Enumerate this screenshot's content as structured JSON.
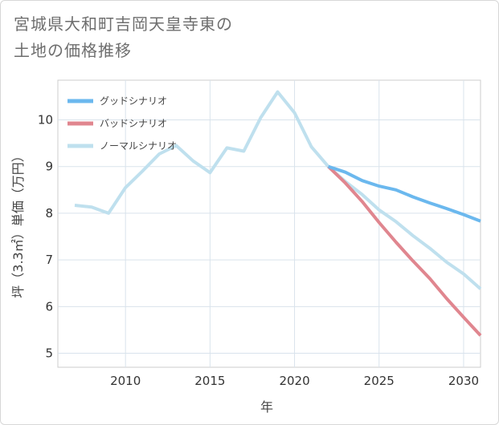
{
  "title": {
    "line1": "宮城県大和町吉岡天皇寺東の",
    "line2": "土地の価格推移"
  },
  "chart_data": {
    "type": "line",
    "xlabel": "年",
    "ylabel": "坪（3.3㎡）単価（万円）",
    "xlim": [
      2006,
      2031
    ],
    "ylim": [
      4.7,
      10.85
    ],
    "x_ticks": [
      2010,
      2015,
      2020,
      2025,
      2030
    ],
    "y_ticks": [
      5,
      6,
      7,
      8,
      9,
      10
    ],
    "x_tick_labels": [
      "2010",
      "2015",
      "2020",
      "2025",
      "2030"
    ],
    "y_tick_labels": [
      "5",
      "6",
      "7",
      "8",
      "9",
      "10"
    ],
    "grid": true,
    "legend_position": "top-left",
    "series": [
      {
        "name": "グッドシナリオ",
        "color": "#6bb8ee",
        "x": [
          2022,
          2023,
          2024,
          2025,
          2026,
          2027,
          2028,
          2029,
          2030,
          2031
        ],
        "y": [
          9.0,
          8.88,
          8.7,
          8.58,
          8.5,
          8.35,
          8.22,
          8.1,
          7.97,
          7.83
        ]
      },
      {
        "name": "バッドシナリオ",
        "color": "#e0868f",
        "x": [
          2022,
          2023,
          2024,
          2025,
          2026,
          2027,
          2028,
          2029,
          2030,
          2031
        ],
        "y": [
          9.0,
          8.65,
          8.25,
          7.8,
          7.38,
          6.98,
          6.6,
          6.17,
          5.77,
          5.38
        ]
      },
      {
        "name": "ノーマルシナリオ",
        "color": "#bfe0ee",
        "x": [
          2007,
          2008,
          2009,
          2010,
          2011,
          2012,
          2013,
          2014,
          2015,
          2016,
          2017,
          2018,
          2019,
          2020,
          2021,
          2022,
          2023,
          2024,
          2025,
          2026,
          2027,
          2028,
          2029,
          2030,
          2031
        ],
        "y": [
          8.17,
          8.13,
          8.0,
          8.55,
          8.9,
          9.27,
          9.45,
          9.12,
          8.87,
          9.4,
          9.33,
          10.05,
          10.6,
          10.15,
          9.42,
          9.0,
          8.68,
          8.4,
          8.07,
          7.82,
          7.52,
          7.25,
          6.95,
          6.7,
          6.38
        ]
      }
    ]
  }
}
